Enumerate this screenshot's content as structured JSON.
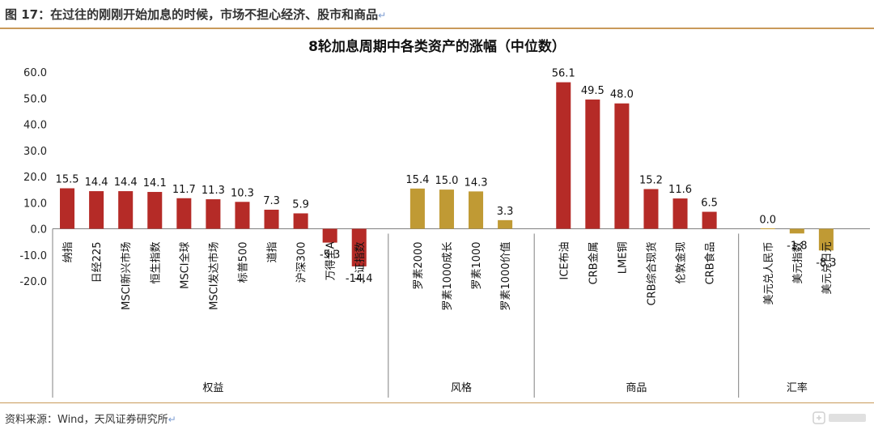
{
  "header": {
    "title": "图 17：在过往的刚刚开始加息的时候，市场不担心经济、股市和商品"
  },
  "footer": {
    "source": "资料来源：Wind，天风证券研究所"
  },
  "colors": {
    "equity_bar": "#b52b27",
    "style_bar": "#c09a34",
    "rule": "#c99a5a",
    "axis": "#808080",
    "return_mark": "#7a9bd1"
  },
  "chart_data": {
    "type": "bar",
    "title": "8轮加息周期中各类资产的涨幅（中位数）",
    "ylim": [
      -20,
      60
    ],
    "yticks": [
      "60.0",
      "50.0",
      "40.0",
      "30.0",
      "20.0",
      "10.0",
      "0.0",
      "-10.0",
      "-20.0"
    ],
    "grid": false,
    "groups": [
      {
        "label": "权益",
        "color": "#b52b27",
        "categories": [
          "纳指",
          "日经225",
          "MSCI新兴市场",
          "恒生指数",
          "MSCI全球",
          "MSCI发达市场",
          "标普500",
          "道指",
          "沪深300",
          "万得全A",
          "上证指数"
        ],
        "values": [
          15.5,
          14.4,
          14.4,
          14.1,
          11.7,
          11.3,
          10.3,
          7.3,
          5.9,
          -5.3,
          -14.4
        ]
      },
      {
        "label": "风格",
        "color": "#c09a34",
        "categories": [
          "罗素2000",
          "罗素1000成长",
          "罗素1000",
          "罗素1000价值"
        ],
        "values": [
          15.4,
          15.0,
          14.3,
          3.3
        ]
      },
      {
        "label": "商品",
        "color": "#b52b27",
        "categories": [
          "ICE布油",
          "CRB金属",
          "LME铜",
          "CRB综合现货",
          "伦敦金现",
          "CRB食品"
        ],
        "values": [
          56.1,
          49.5,
          48.0,
          15.2,
          11.6,
          6.5
        ]
      },
      {
        "label": "汇率",
        "color": "#c09a34",
        "categories": [
          "美元兑人民币",
          "美元指数",
          "美元兑日元"
        ],
        "values": [
          0.0,
          -1.8,
          -8.3
        ]
      }
    ]
  }
}
